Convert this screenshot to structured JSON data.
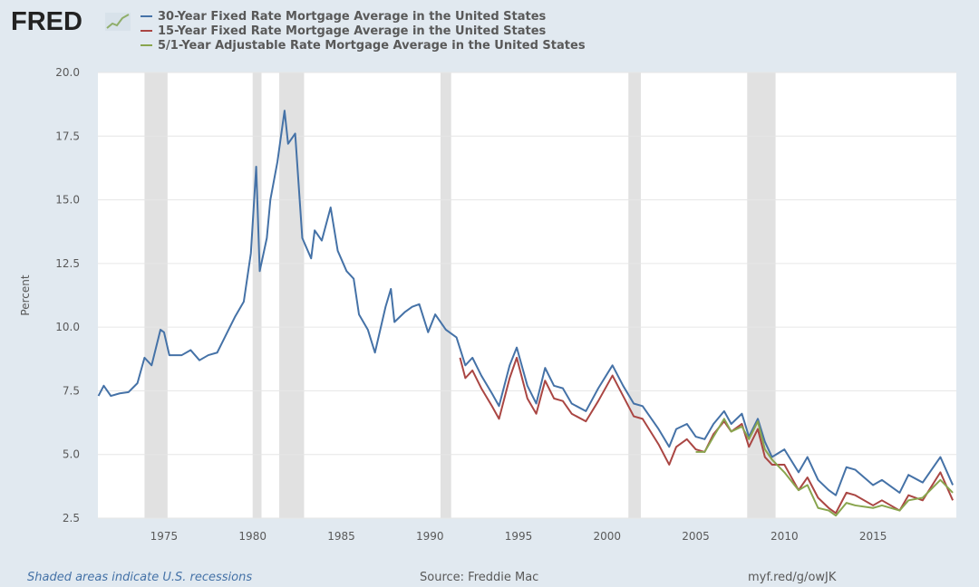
{
  "logo": "FRED",
  "footer": {
    "note": "Shaded areas indicate U.S. recessions",
    "source": "Source: Freddie Mac",
    "link": "myf.red/g/owJK"
  },
  "chart_data": {
    "type": "line",
    "title": "",
    "xlabel": "",
    "ylabel": "Percent",
    "xlim": [
      1971.27,
      2019.7
    ],
    "ylim": [
      2.5,
      20.0
    ],
    "yticks": [
      "2.5",
      "5.0",
      "7.5",
      "10.0",
      "12.5",
      "15.0",
      "17.5",
      "20.0"
    ],
    "xticks": [
      "1975",
      "1980",
      "1985",
      "1990",
      "1995",
      "2000",
      "2005",
      "2010",
      "2015"
    ],
    "grid": true,
    "legend_position": "top",
    "recessions": [
      [
        1973.9,
        1975.2
      ],
      [
        1980.0,
        1980.5
      ],
      [
        1981.5,
        1982.9
      ],
      [
        1990.6,
        1991.2
      ],
      [
        2001.2,
        2001.9
      ],
      [
        2007.9,
        2009.5
      ]
    ],
    "recession_color": "#e1e1e1",
    "series": [
      {
        "name": "30-Year Fixed Rate Mortgage Average in the United States",
        "color": "#4572a7",
        "x": [
          1971.3,
          1971.6,
          1972,
          1972.5,
          1973,
          1973.5,
          1973.9,
          1974.3,
          1974.8,
          1975,
          1975.3,
          1976,
          1976.5,
          1977,
          1977.5,
          1978,
          1978.5,
          1979,
          1979.5,
          1979.9,
          1980.2,
          1980.4,
          1980.8,
          1981,
          1981.4,
          1981.8,
          1982,
          1982.4,
          1982.8,
          1983.3,
          1983.5,
          1983.9,
          1984.4,
          1984.8,
          1985.3,
          1985.7,
          1986,
          1986.5,
          1986.9,
          1987.3,
          1987.5,
          1987.8,
          1988,
          1988.6,
          1989,
          1989.4,
          1989.9,
          1990.3,
          1990.9,
          1991.5,
          1992,
          1992.4,
          1992.9,
          1993.5,
          1993.9,
          1994.5,
          1994.9,
          1995.5,
          1996,
          1996.5,
          1997,
          1997.5,
          1998,
          1998.8,
          1999.5,
          2000.3,
          2000.9,
          2001.5,
          2002,
          2002.9,
          2003.5,
          2003.9,
          2004.5,
          2005,
          2005.5,
          2006,
          2006.6,
          2007,
          2007.6,
          2008,
          2008.5,
          2008.9,
          2009.3,
          2010,
          2010.8,
          2011.3,
          2011.9,
          2012.5,
          2012.9,
          2013.5,
          2014,
          2015,
          2015.5,
          2016.5,
          2017,
          2017.8,
          2018.8,
          2019.5
        ],
        "y": [
          7.3,
          7.7,
          7.3,
          7.4,
          7.45,
          7.8,
          8.8,
          8.5,
          9.9,
          9.8,
          8.9,
          8.9,
          9.1,
          8.7,
          8.9,
          9.0,
          9.7,
          10.4,
          11.0,
          12.9,
          16.3,
          12.2,
          13.5,
          15.0,
          16.5,
          18.5,
          17.2,
          17.6,
          13.5,
          12.7,
          13.8,
          13.4,
          14.7,
          13.0,
          12.2,
          11.9,
          10.5,
          9.9,
          9.0,
          10.2,
          10.8,
          11.5,
          10.2,
          10.6,
          10.8,
          10.9,
          9.8,
          10.5,
          9.9,
          9.6,
          8.5,
          8.8,
          8.1,
          7.4,
          6.9,
          8.5,
          9.2,
          7.7,
          7.0,
          8.4,
          7.7,
          7.6,
          7.0,
          6.7,
          7.6,
          8.5,
          7.7,
          7.0,
          6.9,
          6.0,
          5.3,
          6.0,
          6.2,
          5.7,
          5.6,
          6.2,
          6.7,
          6.2,
          6.6,
          5.7,
          6.4,
          5.5,
          4.9,
          5.2,
          4.3,
          4.9,
          4.0,
          3.6,
          3.4,
          4.5,
          4.4,
          3.8,
          4.0,
          3.5,
          4.2,
          3.9,
          4.9,
          3.8
        ]
      },
      {
        "name": "15-Year Fixed Rate Mortgage Average in the United States",
        "color": "#aa4643",
        "x": [
          1991.7,
          1992,
          1992.4,
          1992.9,
          1993.5,
          1993.9,
          1994.5,
          1994.9,
          1995.5,
          1996,
          1996.5,
          1997,
          1997.5,
          1998,
          1998.8,
          1999.5,
          2000.3,
          2000.9,
          2001.5,
          2002,
          2002.9,
          2003.5,
          2003.9,
          2004.5,
          2005,
          2005.5,
          2006,
          2006.6,
          2007,
          2007.6,
          2008,
          2008.5,
          2008.9,
          2009.3,
          2010,
          2010.8,
          2011.3,
          2011.9,
          2012.5,
          2012.9,
          2013.5,
          2014,
          2015,
          2015.5,
          2016.5,
          2017,
          2017.8,
          2018.8,
          2019.5
        ],
        "y": [
          8.8,
          8.0,
          8.3,
          7.6,
          6.9,
          6.4,
          8.0,
          8.8,
          7.2,
          6.6,
          7.9,
          7.2,
          7.1,
          6.6,
          6.3,
          7.1,
          8.1,
          7.3,
          6.5,
          6.4,
          5.4,
          4.6,
          5.3,
          5.6,
          5.2,
          5.1,
          5.8,
          6.3,
          5.9,
          6.2,
          5.3,
          6.0,
          4.9,
          4.6,
          4.6,
          3.6,
          4.1,
          3.3,
          2.9,
          2.7,
          3.5,
          3.4,
          3.0,
          3.2,
          2.8,
          3.4,
          3.2,
          4.3,
          3.2
        ]
      },
      {
        "name": "5/1-Year Adjustable Rate Mortgage Average in the United States",
        "color": "#89a54e",
        "x": [
          2005,
          2005.5,
          2006,
          2006.6,
          2007,
          2007.6,
          2008,
          2008.5,
          2008.9,
          2009.3,
          2010,
          2010.8,
          2011.3,
          2011.9,
          2012.5,
          2012.9,
          2013.5,
          2014,
          2015,
          2015.5,
          2016.5,
          2017,
          2017.8,
          2018.8,
          2019.5
        ],
        "y": [
          5.1,
          5.1,
          5.7,
          6.4,
          5.9,
          6.1,
          5.6,
          6.3,
          5.2,
          4.8,
          4.3,
          3.6,
          3.8,
          2.9,
          2.8,
          2.6,
          3.1,
          3.0,
          2.9,
          3.0,
          2.8,
          3.2,
          3.3,
          4.0,
          3.5
        ]
      }
    ]
  }
}
